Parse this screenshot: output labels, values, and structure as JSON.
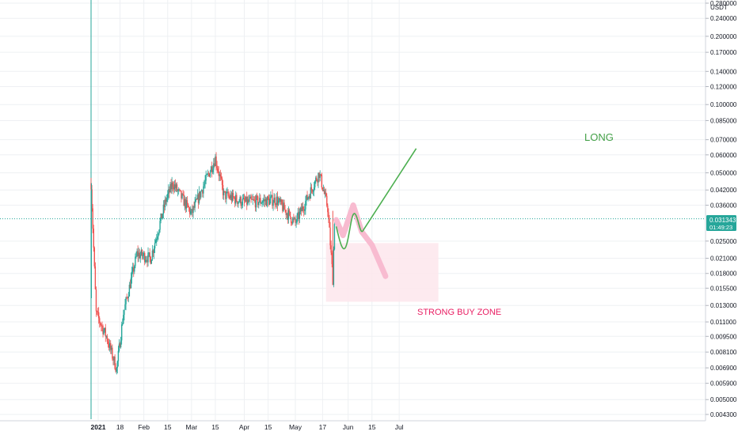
{
  "currency": "USDT",
  "colors": {
    "up": "#26a69a",
    "down": "#ef5350",
    "price_badge": "#26a69a",
    "long_line": "#4caf50",
    "zone_fill": "#fde6ec",
    "zone_text": "#e91e63",
    "pink_path": "#f8bbd0"
  },
  "price_badge": {
    "value": "0.031343",
    "timer": "01:49:23"
  },
  "annotations": {
    "long_label": "LONG",
    "zone_label": "STRONG BUY ZONE"
  },
  "chart_data": {
    "type": "candlestick",
    "y_scale": "log",
    "y_ticks": [
      "0.280000",
      "0.240000",
      "0.200000",
      "0.170000",
      "0.140000",
      "0.120000",
      "0.100000",
      "0.085000",
      "0.070000",
      "0.060000",
      "0.050000",
      "0.042000",
      "0.036000",
      "0.025000",
      "0.021000",
      "0.018000",
      "0.015500",
      "0.013000",
      "0.011000",
      "0.009500",
      "0.008100",
      "0.006900",
      "0.005900",
      "0.005000",
      "0.004300"
    ],
    "x_ticks": [
      "2021",
      "18",
      "Feb",
      "15",
      "Mar",
      "15",
      "Apr",
      "15",
      "May",
      "17",
      "Jun",
      "15",
      "Jul"
    ],
    "last_price": 0.031343,
    "buy_zone": {
      "low": 0.0135,
      "high": 0.0245
    },
    "approx_path": [
      {
        "date": "2021-01-01",
        "price": 0.045
      },
      {
        "date": "2021-01-04",
        "price": 0.012
      },
      {
        "date": "2021-01-10",
        "price": 0.0095
      },
      {
        "date": "2021-01-16",
        "price": 0.0068
      },
      {
        "date": "2021-01-20",
        "price": 0.012
      },
      {
        "date": "2021-01-28",
        "price": 0.022
      },
      {
        "date": "2021-02-05",
        "price": 0.021
      },
      {
        "date": "2021-02-14",
        "price": 0.038
      },
      {
        "date": "2021-02-18",
        "price": 0.045
      },
      {
        "date": "2021-03-01",
        "price": 0.033
      },
      {
        "date": "2021-03-15",
        "price": 0.058
      },
      {
        "date": "2021-03-20",
        "price": 0.04
      },
      {
        "date": "2021-04-01",
        "price": 0.037
      },
      {
        "date": "2021-04-20",
        "price": 0.038
      },
      {
        "date": "2021-05-01",
        "price": 0.03
      },
      {
        "date": "2021-05-15",
        "price": 0.05
      },
      {
        "date": "2021-05-20",
        "price": 0.035
      },
      {
        "date": "2021-05-23",
        "price": 0.017
      },
      {
        "date": "2021-05-24",
        "price": 0.031
      }
    ]
  }
}
